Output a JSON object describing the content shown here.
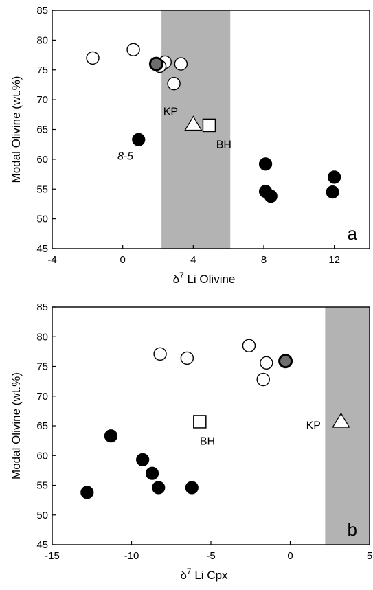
{
  "chart_data": [
    {
      "type": "scatter",
      "panel_label": "a",
      "xlabel_prefix": "δ",
      "xlabel_sup": "7",
      "xlabel_rest": " Li Olivine",
      "ylabel": "Modal Olivine (wt.%)",
      "xlim": [
        -4,
        14
      ],
      "ylim": [
        45,
        85
      ],
      "xticks": [
        -4,
        0,
        4,
        8,
        12
      ],
      "yticks": [
        45,
        50,
        55,
        60,
        65,
        70,
        75,
        80,
        85
      ],
      "shaded_band": [
        2.2,
        6.1
      ],
      "grid": false,
      "series": [
        {
          "marker": "open-circle",
          "points": [
            [
              -1.7,
              77.0
            ],
            [
              0.6,
              78.4
            ],
            [
              2.4,
              76.3
            ],
            [
              2.1,
              75.6
            ],
            [
              3.3,
              76.0
            ],
            [
              2.9,
              72.7
            ]
          ]
        },
        {
          "marker": "grey-circle",
          "points": [
            [
              1.9,
              76.0
            ]
          ]
        },
        {
          "marker": "filled-circle",
          "points": [
            [
              0.9,
              63.3
            ],
            [
              8.1,
              59.2
            ],
            [
              8.1,
              54.6
            ],
            [
              8.4,
              53.8
            ],
            [
              12.0,
              57.0
            ],
            [
              11.9,
              54.5
            ]
          ]
        },
        {
          "marker": "open-triangle",
          "points": [
            [
              4.0,
              65.8
            ]
          ]
        },
        {
          "marker": "open-square",
          "points": [
            [
              4.9,
              65.7
            ]
          ]
        }
      ],
      "annotations": [
        {
          "text": "KP",
          "x": 2.3,
          "y": 67.4,
          "italic": false
        },
        {
          "text": "BH",
          "x": 5.3,
          "y": 61.9,
          "italic": false
        },
        {
          "text": "8-5",
          "x": -0.3,
          "y": 59.9,
          "italic": true
        }
      ]
    },
    {
      "type": "scatter",
      "panel_label": "b",
      "xlabel_prefix": "δ",
      "xlabel_sup": "7",
      "xlabel_rest": " Li Cpx",
      "ylabel": "Modal Olivine (wt.%)",
      "xlim": [
        -15,
        5
      ],
      "ylim": [
        45,
        85
      ],
      "xticks": [
        -15,
        -10,
        -5,
        0,
        5
      ],
      "yticks": [
        45,
        50,
        55,
        60,
        65,
        70,
        75,
        80,
        85
      ],
      "shaded_band": [
        2.2,
        5
      ],
      "grid": false,
      "series": [
        {
          "marker": "open-circle",
          "points": [
            [
              -8.2,
              77.1
            ],
            [
              -6.5,
              76.4
            ],
            [
              -2.6,
              78.5
            ],
            [
              -1.5,
              75.6
            ],
            [
              -1.7,
              72.8
            ]
          ]
        },
        {
          "marker": "grey-circle",
          "points": [
            [
              -0.3,
              75.9
            ]
          ]
        },
        {
          "marker": "filled-circle",
          "points": [
            [
              -11.3,
              63.3
            ],
            [
              -9.3,
              59.3
            ],
            [
              -8.7,
              57.0
            ],
            [
              -8.3,
              54.6
            ],
            [
              -6.2,
              54.6
            ],
            [
              -12.8,
              53.8
            ]
          ]
        },
        {
          "marker": "open-triangle",
          "points": [
            [
              3.2,
              65.7
            ]
          ]
        },
        {
          "marker": "open-square",
          "points": [
            [
              -5.7,
              65.7
            ]
          ]
        }
      ],
      "annotations": [
        {
          "text": "KP",
          "x": 1.0,
          "y": 64.5,
          "italic": false
        },
        {
          "text": "BH",
          "x": -5.7,
          "y": 61.8,
          "italic": false
        }
      ]
    }
  ]
}
